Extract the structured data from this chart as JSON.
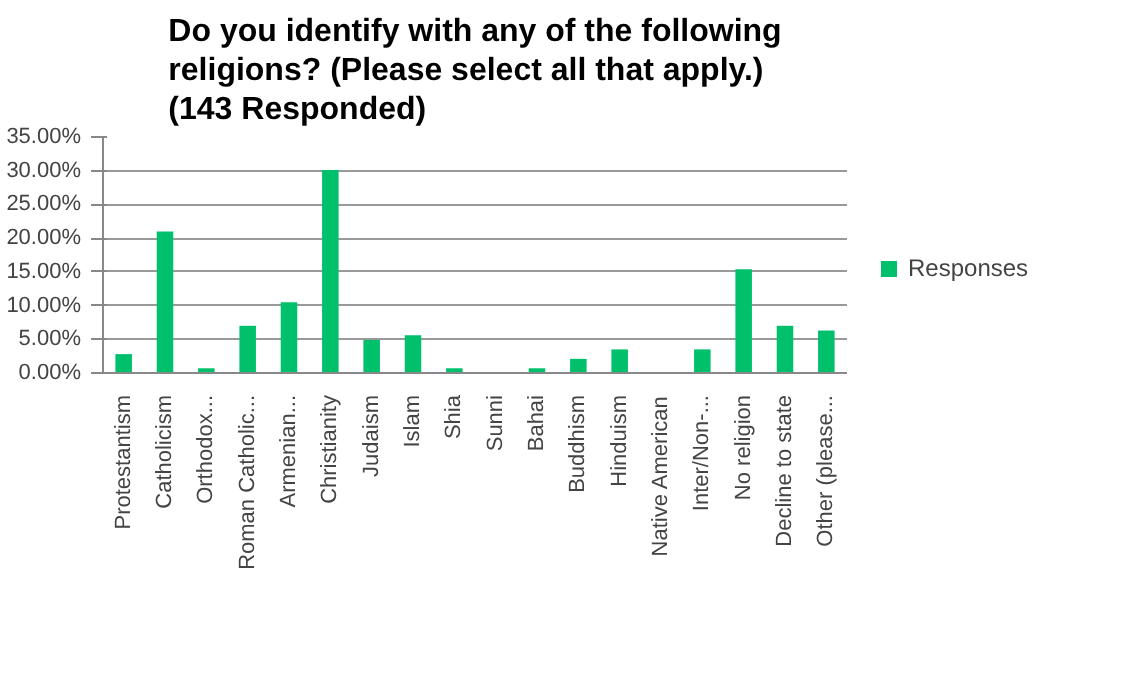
{
  "chart_data": {
    "type": "bar",
    "title": "Do you identify with any of the following religions? (Please select all that apply.) (143 Responded)",
    "categories": [
      "Protestantism",
      "Catholicism",
      "Orthodox...",
      "Roman Catholic...",
      "Armenian...",
      "Christianity",
      "Judaism",
      "Islam",
      "Shia",
      "Sunni",
      "Bahai",
      "Buddhism",
      "Hinduism",
      "Native American",
      "Inter/Non-...",
      "No religion",
      "Decline to state",
      "Other (please..."
    ],
    "series": [
      {
        "name": "Responses",
        "color": "#00c06b",
        "values": [
          2.8,
          21.0,
          0.7,
          7.0,
          10.5,
          30.1,
          4.9,
          5.6,
          0.7,
          0,
          0.7,
          2.1,
          3.5,
          0,
          3.5,
          15.4,
          7.0,
          6.3
        ]
      }
    ],
    "ylim": [
      0,
      35
    ],
    "yticks": [
      {
        "value": 0,
        "label": "0.00%"
      },
      {
        "value": 5,
        "label": "5.00%"
      },
      {
        "value": 10,
        "label": "10.00%"
      },
      {
        "value": 15,
        "label": "15.00%"
      },
      {
        "value": 20,
        "label": "20.00%"
      },
      {
        "value": 25,
        "label": "25.00%"
      },
      {
        "value": 30,
        "label": "30.00%"
      },
      {
        "value": 35,
        "label": "35.00%"
      }
    ],
    "grid": "y",
    "legend": "right"
  }
}
